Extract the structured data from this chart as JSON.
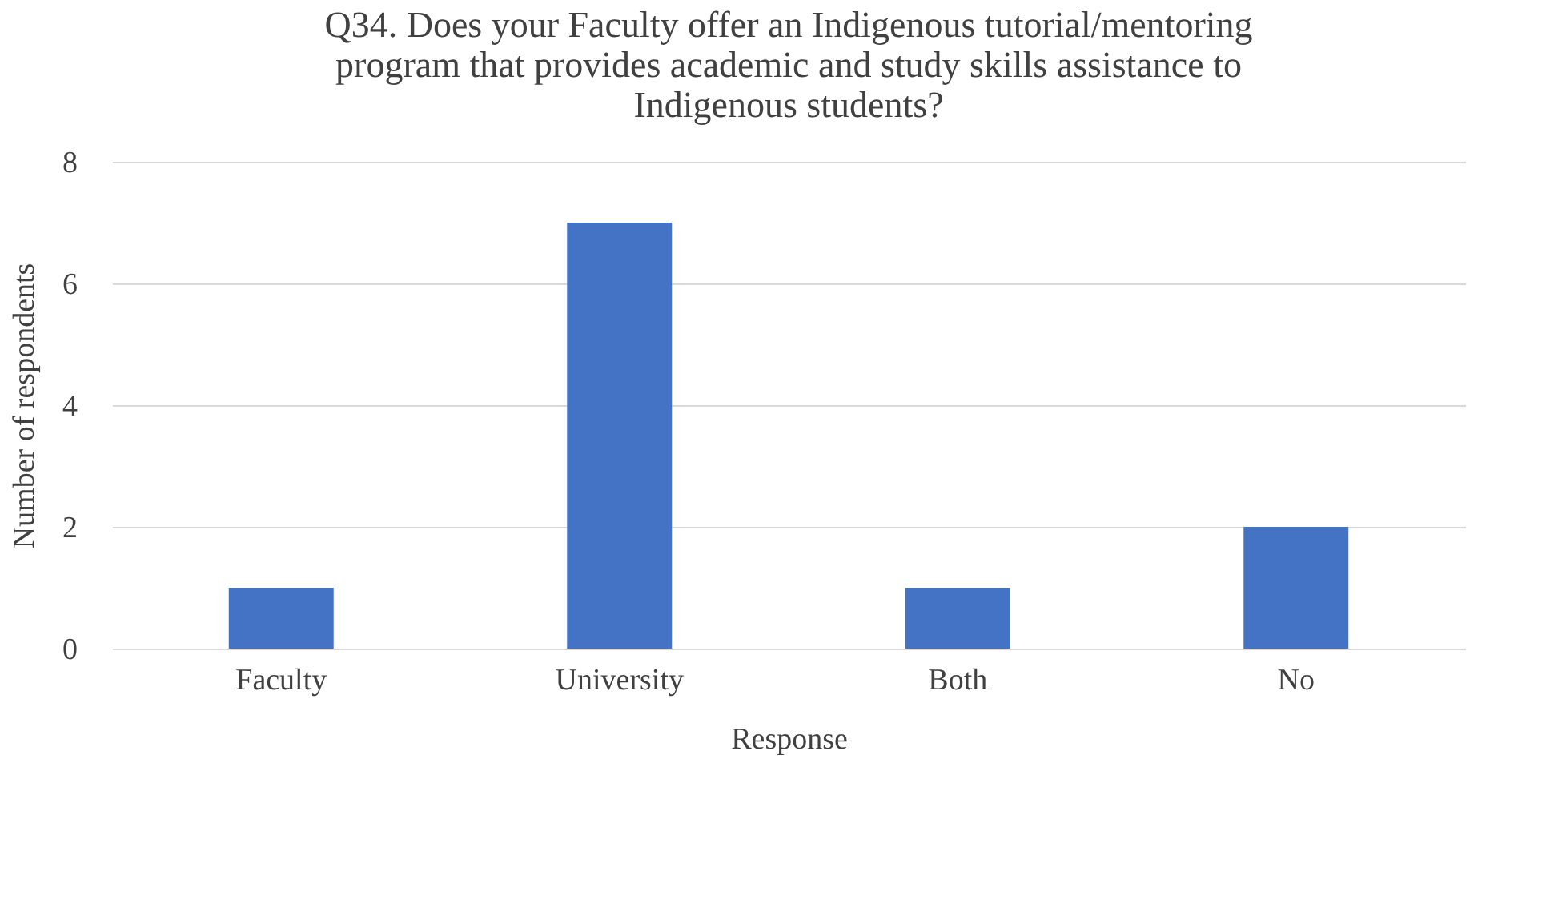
{
  "chart_data": {
    "type": "bar",
    "title": "Q34. Does your Faculty offer an Indigenous tutorial/mentoring program that provides academic and study skills assistance to Indigenous students?",
    "xlabel": "Response",
    "ylabel": "Number of respondents",
    "categories": [
      "Faculty",
      "University",
      "Both",
      "No"
    ],
    "values": [
      1,
      7,
      1,
      2
    ],
    "color": "#4472c4",
    "ylim": [
      0,
      8
    ],
    "yticks": [
      0,
      2,
      4,
      6,
      8
    ],
    "grid": "y"
  }
}
